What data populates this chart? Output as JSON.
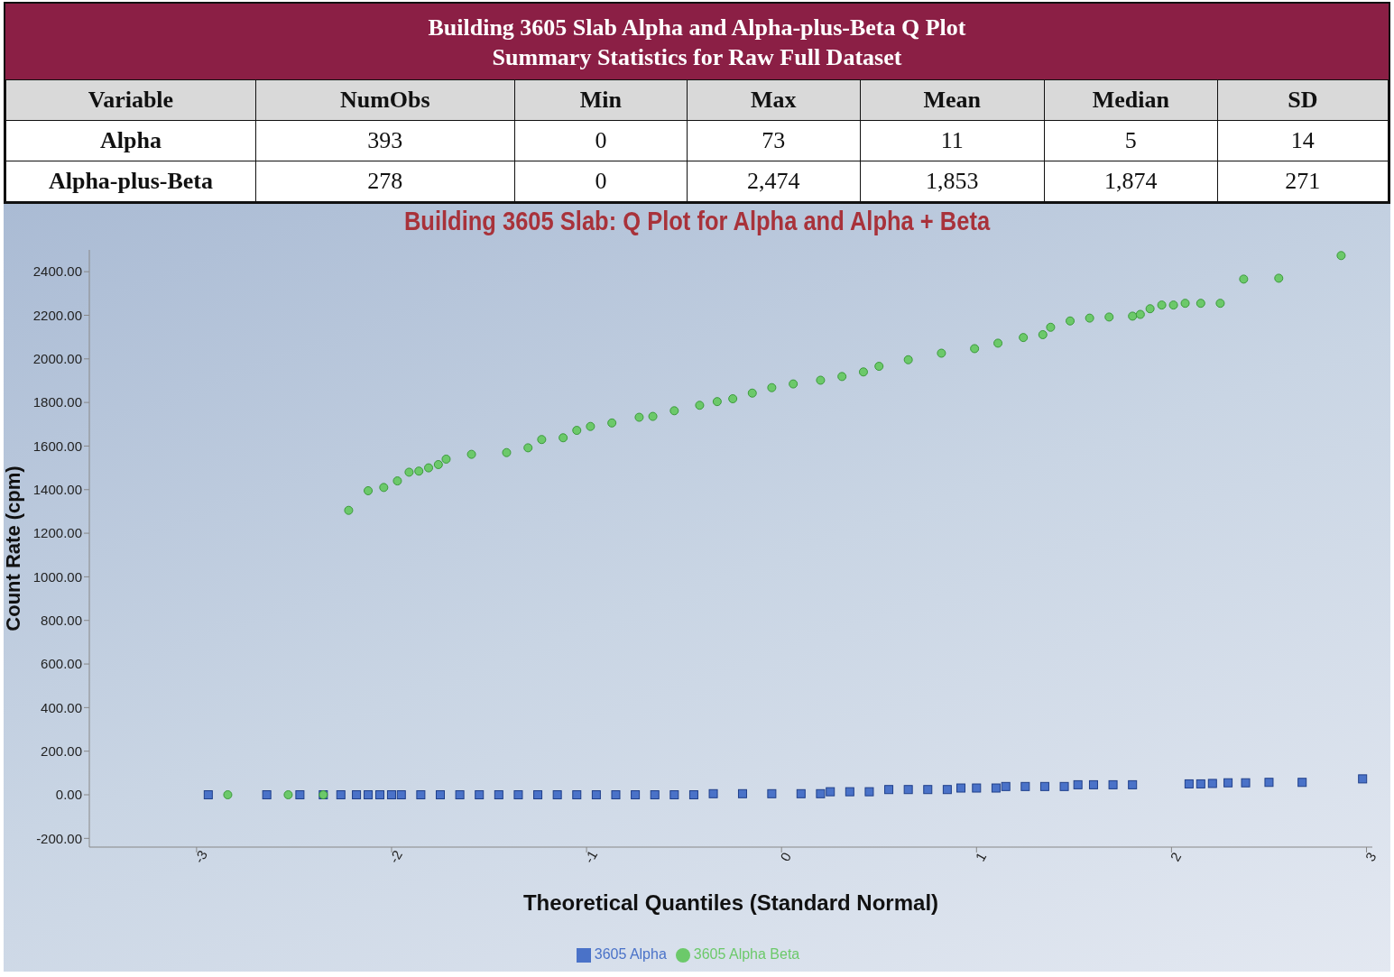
{
  "chart_data": [
    {
      "type": "other",
      "title": "Building 3605 Slab Alpha and Alpha-plus-Beta Q Plot",
      "subtitle": "Summary Statistics for Raw Full Dataset",
      "annotations": [
        "Variable",
        "NumObs",
        "Min",
        "Max",
        "Mean",
        "Median",
        "SD",
        "Alpha",
        "393",
        "0",
        "73",
        "11",
        "5",
        "14",
        "Alpha-plus-Beta",
        "278",
        "0",
        "2,474",
        "1,853",
        "1,874",
        "271"
      ]
    },
    {
      "type": "scatter",
      "title": "Building 3605 Slab: Q Plot for Alpha and Alpha + Beta",
      "xlabel": "Theoretical Quantiles (Standard Normal)",
      "ylabel": "Count Rate (cpm)",
      "xlim": [
        -3.55,
        3.03
      ],
      "ylim": [
        -240,
        2500
      ],
      "xticks": [
        {
          "value": -3,
          "label": "-3"
        },
        {
          "value": -2,
          "label": "-2"
        },
        {
          "value": -1,
          "label": "-1"
        },
        0,
        1,
        2,
        3
      ],
      "yticks": [
        {
          "value": -200,
          "label": "-200.00"
        },
        {
          "value": 0,
          "label": "0.00"
        },
        {
          "value": 200,
          "label": "200.00"
        },
        {
          "value": 400,
          "label": "400.00"
        },
        {
          "value": 600,
          "label": "600.00"
        },
        {
          "value": 800,
          "label": "800.00"
        },
        {
          "value": 1000,
          "label": "1000.00"
        },
        {
          "value": 1200,
          "label": "1200.00"
        },
        {
          "value": 1400,
          "label": "1400.00"
        },
        {
          "value": 1600,
          "label": "1600.00"
        },
        {
          "value": 1800,
          "label": "1800.00"
        },
        {
          "value": 2000,
          "label": "2000.00"
        },
        {
          "value": 2200,
          "label": "2200.00"
        },
        {
          "value": 2400,
          "label": "2400.00"
        }
      ],
      "legend": "bottom",
      "grid": false,
      "series": [
        {
          "name": "3605 Alpha",
          "color": "#4a72c8",
          "marker": "square",
          "x": [
            -2.94,
            -2.64,
            -2.47,
            -2.35,
            -2.26,
            -2.18,
            -2.12,
            -2.06,
            -2.0,
            -1.95,
            -1.85,
            -1.75,
            -1.65,
            -1.55,
            -1.45,
            -1.35,
            -1.25,
            -1.15,
            -1.05,
            -0.95,
            -0.85,
            -0.75,
            -0.65,
            -0.55,
            -0.45,
            -0.35,
            -0.2,
            -0.05,
            0.1,
            0.2,
            0.25,
            0.35,
            0.45,
            0.55,
            0.65,
            0.75,
            0.85,
            0.92,
            1.0,
            1.1,
            1.15,
            1.25,
            1.35,
            1.45,
            1.52,
            1.6,
            1.7,
            1.8,
            2.09,
            2.15,
            2.21,
            2.29,
            2.38,
            2.5,
            2.67,
            2.98
          ],
          "values": [
            0,
            0,
            0,
            0,
            0,
            0,
            0,
            0,
            0,
            0,
            0,
            0,
            0,
            0,
            0,
            0,
            0,
            0,
            0,
            0,
            0,
            0,
            0,
            0,
            0,
            5,
            5,
            5,
            5,
            5,
            14,
            14,
            14,
            24,
            24,
            24,
            24,
            31,
            31,
            31,
            38,
            38,
            38,
            38,
            46,
            46,
            46,
            46,
            50,
            50,
            52,
            55,
            55,
            57,
            57,
            73
          ]
        },
        {
          "name": "3605 Alpha Beta",
          "color": "#6cc96a",
          "marker": "circle",
          "x": [
            -2.84,
            -2.53,
            -2.35,
            -2.22,
            -2.12,
            -2.04,
            -1.97,
            -1.91,
            -1.86,
            -1.81,
            -1.76,
            -1.72,
            -1.59,
            -1.41,
            -1.3,
            -1.23,
            -1.12,
            -1.05,
            -0.98,
            -0.87,
            -0.73,
            -0.66,
            -0.55,
            -0.42,
            -0.33,
            -0.25,
            -0.15,
            -0.05,
            0.06,
            0.2,
            0.31,
            0.42,
            0.5,
            0.65,
            0.82,
            0.99,
            1.11,
            1.24,
            1.34,
            1.38,
            1.48,
            1.58,
            1.68,
            1.8,
            1.84,
            1.89,
            1.95,
            2.01,
            2.07,
            2.15,
            2.25,
            2.37,
            2.55,
            2.87
          ],
          "values": [
            0,
            0,
            0,
            1305,
            1395,
            1410,
            1440,
            1480,
            1485,
            1500,
            1515,
            1540,
            1562,
            1570,
            1592,
            1630,
            1638,
            1672,
            1690,
            1706,
            1732,
            1736,
            1762,
            1787,
            1804,
            1817,
            1843,
            1868,
            1885,
            1902,
            1919,
            1940,
            1966,
            1996,
            2026,
            2047,
            2072,
            2098,
            2111,
            2145,
            2174,
            2187,
            2192,
            2196,
            2204,
            2230,
            2247,
            2247,
            2255,
            2255,
            2255,
            2366,
            2370,
            2474
          ]
        }
      ]
    }
  ]
}
